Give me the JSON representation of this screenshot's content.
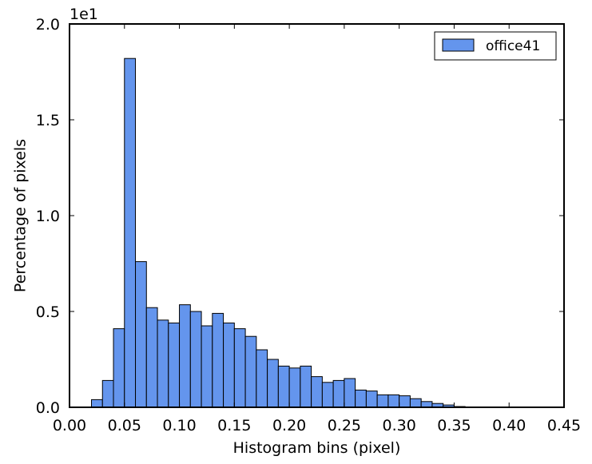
{
  "chart_data": {
    "type": "bar",
    "title": "",
    "xlabel": "Histogram bins (pixel)",
    "ylabel": "Percentage of pixels",
    "y_offset_label": "1e1",
    "xlim": [
      0.0,
      0.45
    ],
    "ylim": [
      0.0,
      2.0
    ],
    "xticks": [
      "0.00",
      "0.05",
      "0.10",
      "0.15",
      "0.20",
      "0.25",
      "0.30",
      "0.35",
      "0.40",
      "0.45"
    ],
    "yticks": [
      "0.0",
      "0.5",
      "1.0",
      "1.5",
      "2.0"
    ],
    "bin_width": 0.01,
    "grid": false,
    "legend_position": "top-right",
    "colors": {
      "bar": "#6495ED",
      "edge": "#000000"
    },
    "series": [
      {
        "name": "office41",
        "bin_starts": [
          0.02,
          0.03,
          0.04,
          0.05,
          0.06,
          0.07,
          0.08,
          0.09,
          0.1,
          0.11,
          0.12,
          0.13,
          0.14,
          0.15,
          0.16,
          0.17,
          0.18,
          0.19,
          0.2,
          0.21,
          0.22,
          0.23,
          0.24,
          0.25,
          0.26,
          0.27,
          0.28,
          0.29,
          0.3,
          0.31,
          0.32,
          0.33,
          0.34,
          0.35
        ],
        "values": [
          0.04,
          0.14,
          0.41,
          1.82,
          0.76,
          0.52,
          0.455,
          0.44,
          0.535,
          0.5,
          0.425,
          0.49,
          0.44,
          0.41,
          0.37,
          0.3,
          0.25,
          0.215,
          0.205,
          0.215,
          0.16,
          0.13,
          0.14,
          0.15,
          0.09,
          0.085,
          0.065,
          0.065,
          0.06,
          0.045,
          0.03,
          0.02,
          0.012,
          0.004
        ]
      }
    ]
  }
}
